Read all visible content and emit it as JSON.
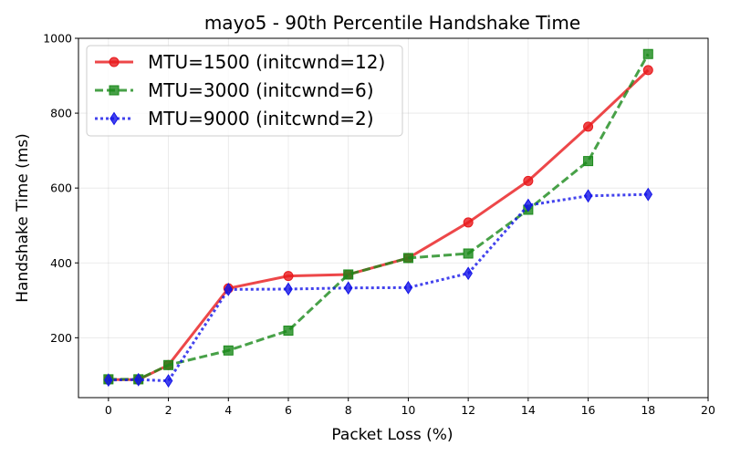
{
  "chart_data": {
    "type": "line",
    "title": "mayo5 - 90th Percentile Handshake Time",
    "xlabel": "Packet Loss (%)",
    "ylabel": "Handshake Time (ms)",
    "xlim": [
      -1,
      20
    ],
    "ylim": [
      40,
      1000
    ],
    "xticks": [
      0,
      2,
      4,
      6,
      8,
      10,
      12,
      14,
      16,
      18,
      20
    ],
    "yticks": [
      200,
      400,
      600,
      800,
      1000
    ],
    "grid": true,
    "legend_position": "top-left",
    "x": [
      0,
      1,
      2,
      4,
      6,
      8,
      10,
      12,
      14,
      16,
      18
    ],
    "series": [
      {
        "name": "MTU=1500 (initcwnd=12)",
        "color": "#e8191c",
        "line_style": "solid",
        "marker": "circle",
        "values": [
          88,
          88,
          127,
          332,
          365,
          369,
          413,
          508,
          619,
          764,
          915
        ]
      },
      {
        "name": "MTU=3000 (initcwnd=6)",
        "color": "#1a8a1a",
        "line_style": "dashed",
        "marker": "square",
        "values": [
          89,
          89,
          127,
          166,
          219,
          369,
          413,
          425,
          542,
          672,
          958
        ]
      },
      {
        "name": "MTU=9000 (initcwnd=2)",
        "color": "#1414e8",
        "line_style": "dotted",
        "marker": "diamond",
        "values": [
          87,
          88,
          85,
          329,
          330,
          333,
          334,
          372,
          554,
          579,
          583
        ]
      }
    ]
  }
}
